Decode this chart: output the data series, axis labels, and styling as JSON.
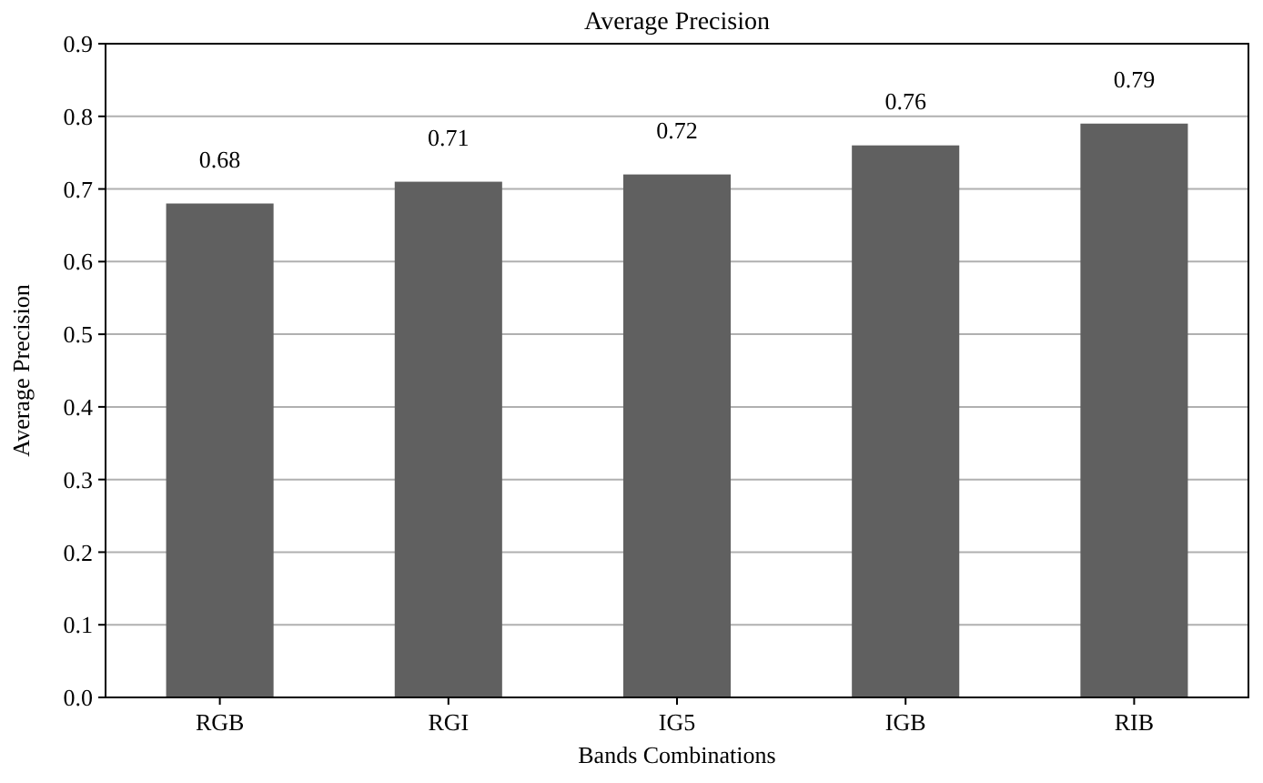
{
  "chart_data": {
    "type": "bar",
    "title": "Average Precision",
    "xlabel": "Bands Combinations",
    "ylabel": "Average Precision",
    "categories": [
      "RGB",
      "RGI",
      "IG5",
      "IGB",
      "RIB"
    ],
    "values": [
      0.68,
      0.71,
      0.72,
      0.76,
      0.79
    ],
    "color": "#606060",
    "ylim": [
      0,
      0.9
    ],
    "yticks": [
      {
        "value": 0,
        "label": "0.0"
      },
      0.1,
      0.2,
      0.3,
      0.4,
      0.5,
      0.6,
      0.7,
      0.8,
      0.9
    ],
    "grid": "y",
    "data_labels": true
  }
}
